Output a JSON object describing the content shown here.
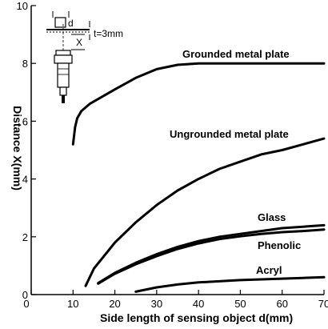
{
  "chart_data": {
    "type": "line",
    "xlabel": "Side length of sensing object d(mm)",
    "ylabel": "Distance X(mm)",
    "xlim": [
      0,
      70
    ],
    "ylim": [
      0,
      10
    ],
    "x_ticks": [
      "0",
      "10",
      "20",
      "30",
      "40",
      "50",
      "60",
      "70"
    ],
    "y_ticks": [
      "0",
      "2",
      "4",
      "6",
      "8",
      "10"
    ],
    "grid": false,
    "series": [
      {
        "name": "Grounded metal plate",
        "points": [
          [
            10,
            5.2
          ],
          [
            10.5,
            5.8
          ],
          [
            11,
            6.1
          ],
          [
            12,
            6.35
          ],
          [
            14,
            6.6
          ],
          [
            17,
            6.85
          ],
          [
            20,
            7.1
          ],
          [
            25,
            7.5
          ],
          [
            30,
            7.8
          ],
          [
            35,
            7.95
          ],
          [
            40,
            8.0
          ],
          [
            50,
            8.0
          ],
          [
            60,
            8.0
          ],
          [
            70,
            8.0
          ]
        ]
      },
      {
        "name": "Ungrounded metal plate",
        "points": [
          [
            13,
            0.3
          ],
          [
            15,
            0.9
          ],
          [
            20,
            1.8
          ],
          [
            25,
            2.5
          ],
          [
            30,
            3.1
          ],
          [
            35,
            3.6
          ],
          [
            40,
            4.0
          ],
          [
            45,
            4.35
          ],
          [
            50,
            4.6
          ],
          [
            55,
            4.85
          ],
          [
            60,
            5.0
          ],
          [
            65,
            5.2
          ],
          [
            70,
            5.4
          ]
        ]
      },
      {
        "name": "Glass",
        "points": [
          [
            16,
            0.4
          ],
          [
            20,
            0.75
          ],
          [
            25,
            1.1
          ],
          [
            30,
            1.4
          ],
          [
            35,
            1.65
          ],
          [
            40,
            1.85
          ],
          [
            45,
            2.0
          ],
          [
            50,
            2.1
          ],
          [
            55,
            2.2
          ],
          [
            60,
            2.3
          ],
          [
            65,
            2.35
          ],
          [
            70,
            2.4
          ]
        ]
      },
      {
        "name": "Phenolic",
        "points": [
          [
            16,
            0.38
          ],
          [
            20,
            0.72
          ],
          [
            25,
            1.05
          ],
          [
            30,
            1.33
          ],
          [
            35,
            1.58
          ],
          [
            40,
            1.77
          ],
          [
            45,
            1.92
          ],
          [
            50,
            2.02
          ],
          [
            55,
            2.1
          ],
          [
            60,
            2.16
          ],
          [
            65,
            2.2
          ],
          [
            70,
            2.25
          ]
        ]
      },
      {
        "name": "Acryl",
        "points": [
          [
            25,
            0.1
          ],
          [
            30,
            0.25
          ],
          [
            35,
            0.35
          ],
          [
            40,
            0.42
          ],
          [
            50,
            0.5
          ],
          [
            60,
            0.55
          ],
          [
            70,
            0.6
          ]
        ]
      }
    ],
    "inset": {
      "object_label": "d",
      "distance_label": "X",
      "thickness_label": "t=3mm"
    }
  }
}
